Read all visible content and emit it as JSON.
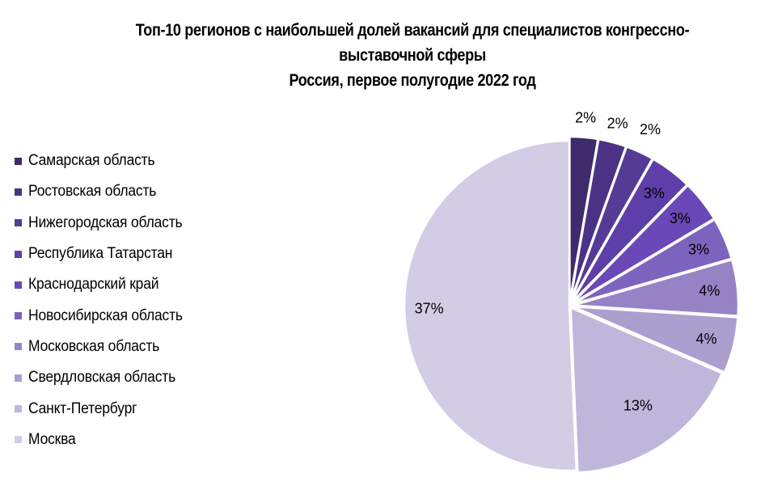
{
  "chart_data": {
    "type": "pie",
    "title_lines": [
      "Топ-10 регионов с наибольшей долей вакансий для специалистов конгрессно-",
      "выставочной сферы",
      "Россия, первое полугодие 2022 год"
    ],
    "legend_position": "left",
    "categories": [
      "Самарская область",
      "Ростовская область",
      "Нижегородская область",
      "Республика Татарстан",
      "Краснодарский край",
      "Новосибирская область",
      "Московская область",
      "Свердловская область",
      "Санкт-Петербург",
      "Москва"
    ],
    "values": [
      2,
      2,
      2,
      3,
      3,
      3,
      4,
      4,
      13,
      37
    ],
    "value_labels": [
      "2%",
      "2%",
      "2%",
      "3%",
      "3%",
      "3%",
      "4%",
      "4%",
      "13%",
      "37%"
    ],
    "colors": [
      "#3f2a6b",
      "#4b3285",
      "#553a96",
      "#5e3ea8",
      "#6a48b8",
      "#7c63bd",
      "#9683c6",
      "#ab9fd0",
      "#bfb6dc",
      "#d3cce5"
    ]
  }
}
